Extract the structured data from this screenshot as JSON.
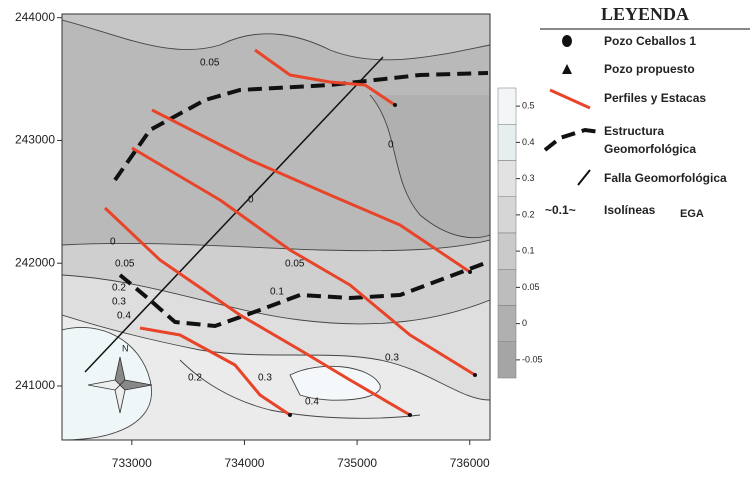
{
  "map": {
    "xlim": [
      732380,
      736180
    ],
    "ylim": [
      240560,
      244030
    ],
    "xticks": [
      733000,
      734000,
      735000,
      736000
    ],
    "yticks": [
      241000,
      242000,
      243000,
      244000
    ]
  },
  "colorbar": {
    "ticks": [
      0.5,
      0.4,
      0.3,
      0.2,
      0.1,
      0.05,
      0,
      -0.05
    ],
    "colors": [
      "#f3f6f7",
      "#e6eef0",
      "#e2e2e2",
      "#d6d6d6",
      "#cacaca",
      "#bdbdbd",
      "#b0b0b0",
      "#a5a5a5"
    ]
  },
  "contour_labels": [
    "0.05",
    "0",
    "0",
    "0",
    "0.05",
    "0.2",
    "0.3",
    "0.4",
    "0.05",
    "0.1",
    "0.3",
    "0.2",
    "0.3",
    "0.4"
  ],
  "north_label": "N",
  "legend": {
    "title": "LEYENDA",
    "items": [
      "Pozo Ceballos 1",
      "Pozo propuesto",
      "Perfiles y Estacas",
      "Estructura",
      "Geomorfológica",
      "Falla Geomorfológica",
      "~0.1~",
      "Isolíneas",
      "EGA"
    ]
  }
}
